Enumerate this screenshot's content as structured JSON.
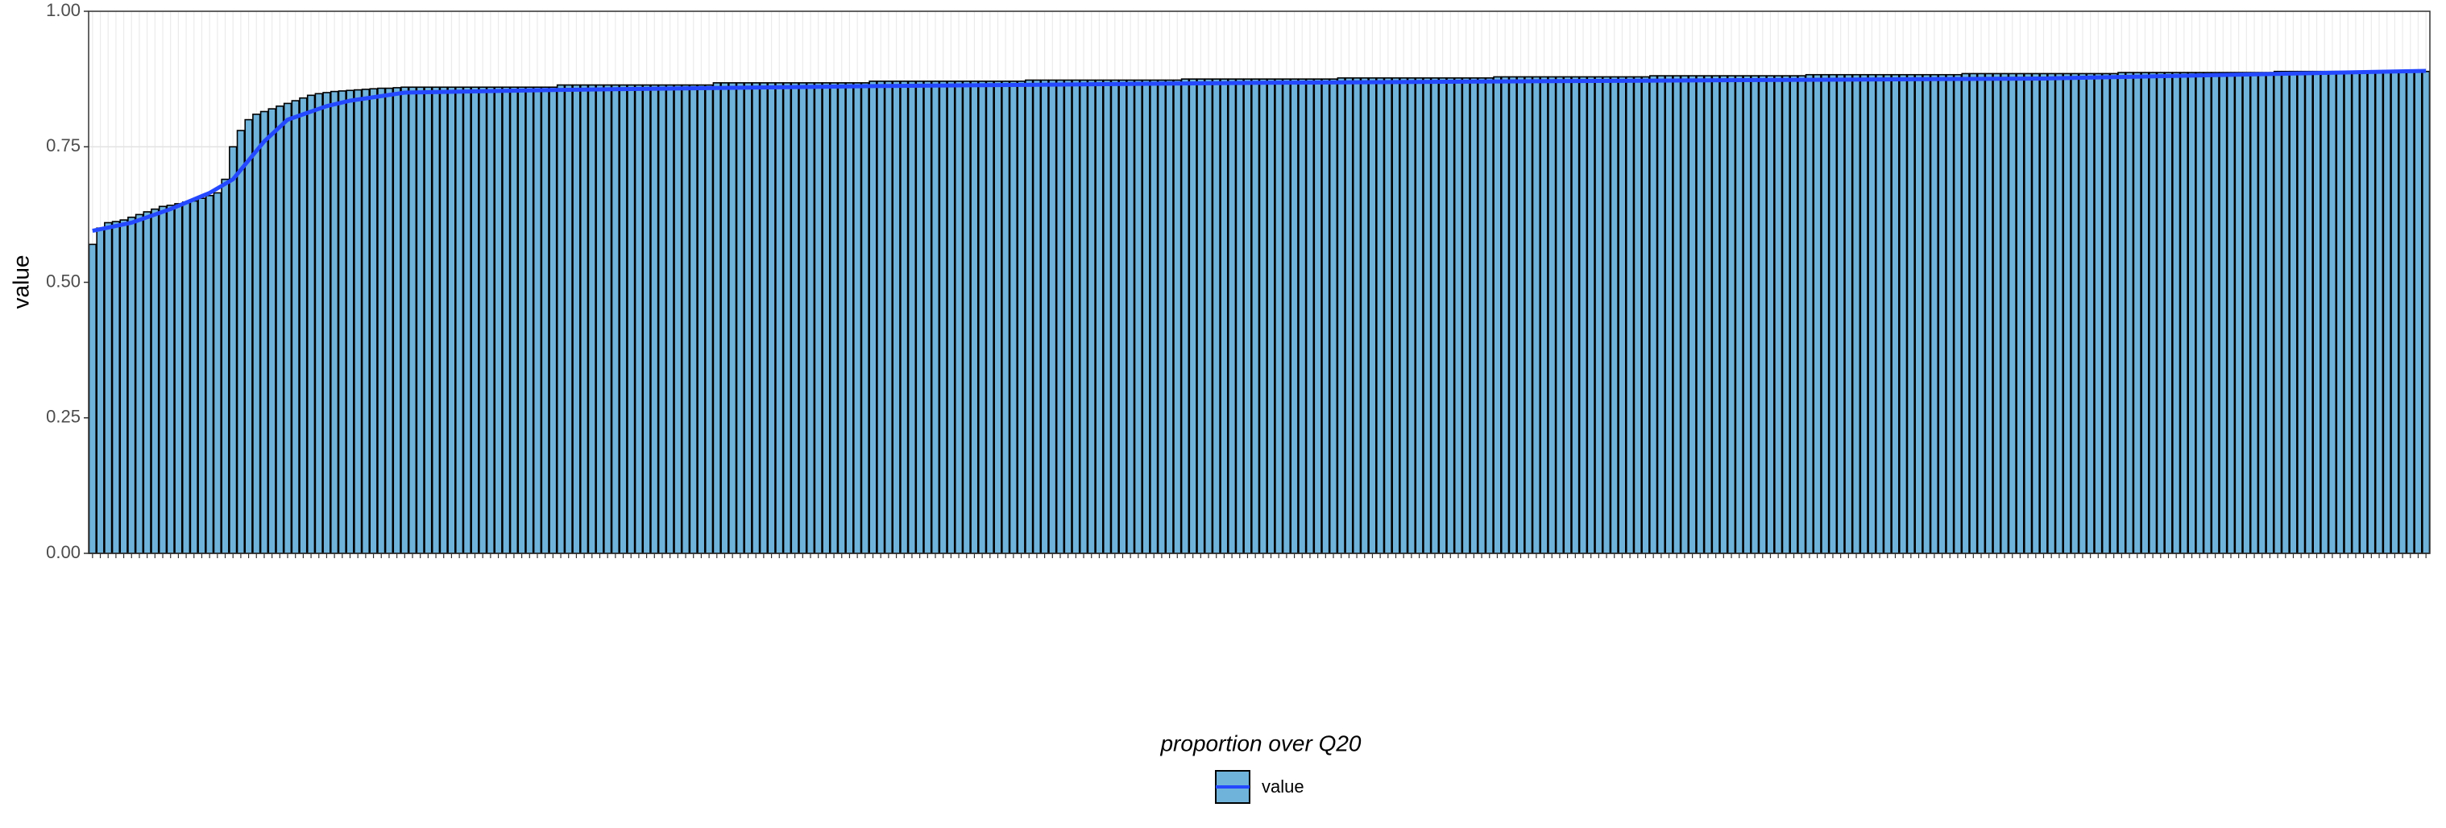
{
  "chart_data": {
    "type": "bar",
    "y_label": "value",
    "legend_title": "proportion over Q20",
    "series": [
      {
        "name": "value",
        "color": "#6fb3da",
        "values": [
          0.57,
          0.6,
          0.61,
          0.612,
          0.615,
          0.62,
          0.625,
          0.63,
          0.635,
          0.64,
          0.642,
          0.645,
          0.648,
          0.65,
          0.655,
          0.66,
          0.665,
          0.69,
          0.75,
          0.78,
          0.8,
          0.81,
          0.815,
          0.82,
          0.825,
          0.83,
          0.835,
          0.84,
          0.845,
          0.848,
          0.85,
          0.852,
          0.853,
          0.854,
          0.855,
          0.856,
          0.857,
          0.858,
          0.858,
          0.859,
          0.86,
          0.86,
          0.86,
          0.86,
          0.86,
          0.86,
          0.86,
          0.86,
          0.86,
          0.86,
          0.86,
          0.86,
          0.86,
          0.86,
          0.86,
          0.86,
          0.86,
          0.86,
          0.86,
          0.86,
          0.864,
          0.864,
          0.864,
          0.864,
          0.864,
          0.864,
          0.864,
          0.864,
          0.864,
          0.864,
          0.864,
          0.864,
          0.864,
          0.864,
          0.864,
          0.864,
          0.864,
          0.864,
          0.864,
          0.864,
          0.868,
          0.868,
          0.868,
          0.868,
          0.868,
          0.868,
          0.868,
          0.868,
          0.868,
          0.868,
          0.868,
          0.868,
          0.868,
          0.868,
          0.868,
          0.868,
          0.868,
          0.868,
          0.868,
          0.868,
          0.871,
          0.871,
          0.871,
          0.871,
          0.871,
          0.871,
          0.871,
          0.871,
          0.871,
          0.871,
          0.871,
          0.871,
          0.871,
          0.871,
          0.871,
          0.871,
          0.871,
          0.871,
          0.871,
          0.871,
          0.873,
          0.873,
          0.873,
          0.873,
          0.873,
          0.873,
          0.873,
          0.873,
          0.873,
          0.873,
          0.873,
          0.873,
          0.873,
          0.873,
          0.873,
          0.873,
          0.873,
          0.873,
          0.873,
          0.873,
          0.875,
          0.875,
          0.875,
          0.875,
          0.875,
          0.875,
          0.875,
          0.875,
          0.875,
          0.875,
          0.875,
          0.875,
          0.875,
          0.875,
          0.875,
          0.875,
          0.875,
          0.875,
          0.875,
          0.875,
          0.877,
          0.877,
          0.877,
          0.877,
          0.877,
          0.877,
          0.877,
          0.877,
          0.877,
          0.877,
          0.877,
          0.877,
          0.877,
          0.877,
          0.877,
          0.877,
          0.877,
          0.877,
          0.877,
          0.877,
          0.879,
          0.879,
          0.879,
          0.879,
          0.879,
          0.879,
          0.879,
          0.879,
          0.879,
          0.879,
          0.879,
          0.879,
          0.879,
          0.879,
          0.879,
          0.879,
          0.879,
          0.879,
          0.879,
          0.879,
          0.881,
          0.881,
          0.881,
          0.881,
          0.881,
          0.881,
          0.881,
          0.881,
          0.881,
          0.881,
          0.881,
          0.881,
          0.881,
          0.881,
          0.881,
          0.881,
          0.881,
          0.881,
          0.881,
          0.881,
          0.883,
          0.883,
          0.883,
          0.883,
          0.883,
          0.883,
          0.883,
          0.883,
          0.883,
          0.883,
          0.883,
          0.883,
          0.883,
          0.883,
          0.883,
          0.883,
          0.883,
          0.883,
          0.883,
          0.883,
          0.885,
          0.885,
          0.885,
          0.885,
          0.885,
          0.885,
          0.885,
          0.885,
          0.885,
          0.885,
          0.885,
          0.885,
          0.885,
          0.885,
          0.885,
          0.885,
          0.885,
          0.885,
          0.885,
          0.885,
          0.887,
          0.887,
          0.887,
          0.887,
          0.887,
          0.887,
          0.887,
          0.887,
          0.887,
          0.887,
          0.887,
          0.887,
          0.887,
          0.887,
          0.887,
          0.887,
          0.887,
          0.887,
          0.887,
          0.887,
          0.889,
          0.889,
          0.889,
          0.889,
          0.889,
          0.889,
          0.889,
          0.889,
          0.889,
          0.889,
          0.889,
          0.889,
          0.889,
          0.889,
          0.889,
          0.889,
          0.889,
          0.889,
          0.889,
          0.889
        ]
      }
    ],
    "trend": {
      "color": "#2448ff",
      "x": [
        0,
        5,
        10,
        15,
        18,
        22,
        25,
        30,
        33,
        40,
        60,
        100,
        150,
        200,
        250,
        299
      ],
      "values": [
        0.595,
        0.61,
        0.635,
        0.665,
        0.69,
        0.76,
        0.8,
        0.825,
        0.835,
        0.85,
        0.855,
        0.862,
        0.868,
        0.872,
        0.876,
        0.89
      ]
    },
    "ylim": [
      0,
      1
    ],
    "yticks": [
      {
        "value": 0,
        "label": "0.00"
      },
      {
        "value": 0.25,
        "label": "0.25"
      },
      {
        "value": 0.5,
        "label": "0.50"
      },
      {
        "value": 0.75,
        "label": "0.75"
      },
      {
        "value": 1,
        "label": "1.00"
      }
    ],
    "grid": true
  }
}
